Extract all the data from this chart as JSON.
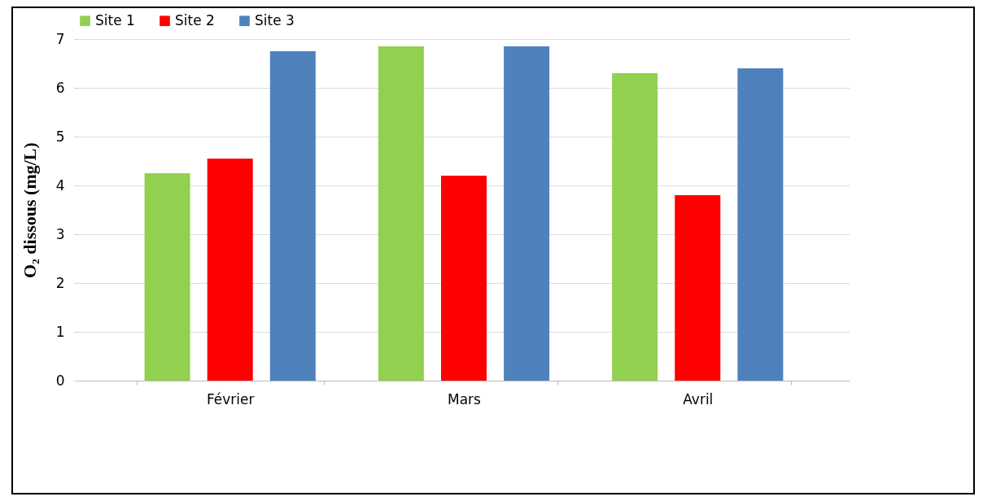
{
  "chart_data": {
    "type": "bar",
    "ylabel": "O₂ dissous (mg/L)",
    "categories": [
      "Février",
      "Mars",
      "Avril"
    ],
    "series": [
      {
        "name": "Site 1",
        "color": "#92d050",
        "values": [
          4.25,
          6.85,
          6.3
        ]
      },
      {
        "name": "Site 2",
        "color": "#ff0000",
        "values": [
          4.55,
          4.2,
          3.8
        ]
      },
      {
        "name": "Site 3",
        "color": "#4f81bd",
        "values": [
          6.75,
          6.85,
          6.4
        ]
      }
    ],
    "ylim": [
      0,
      7
    ],
    "yticks": [
      0,
      1,
      2,
      3,
      4,
      5,
      6,
      7
    ],
    "grid": "y",
    "legend": "top"
  }
}
